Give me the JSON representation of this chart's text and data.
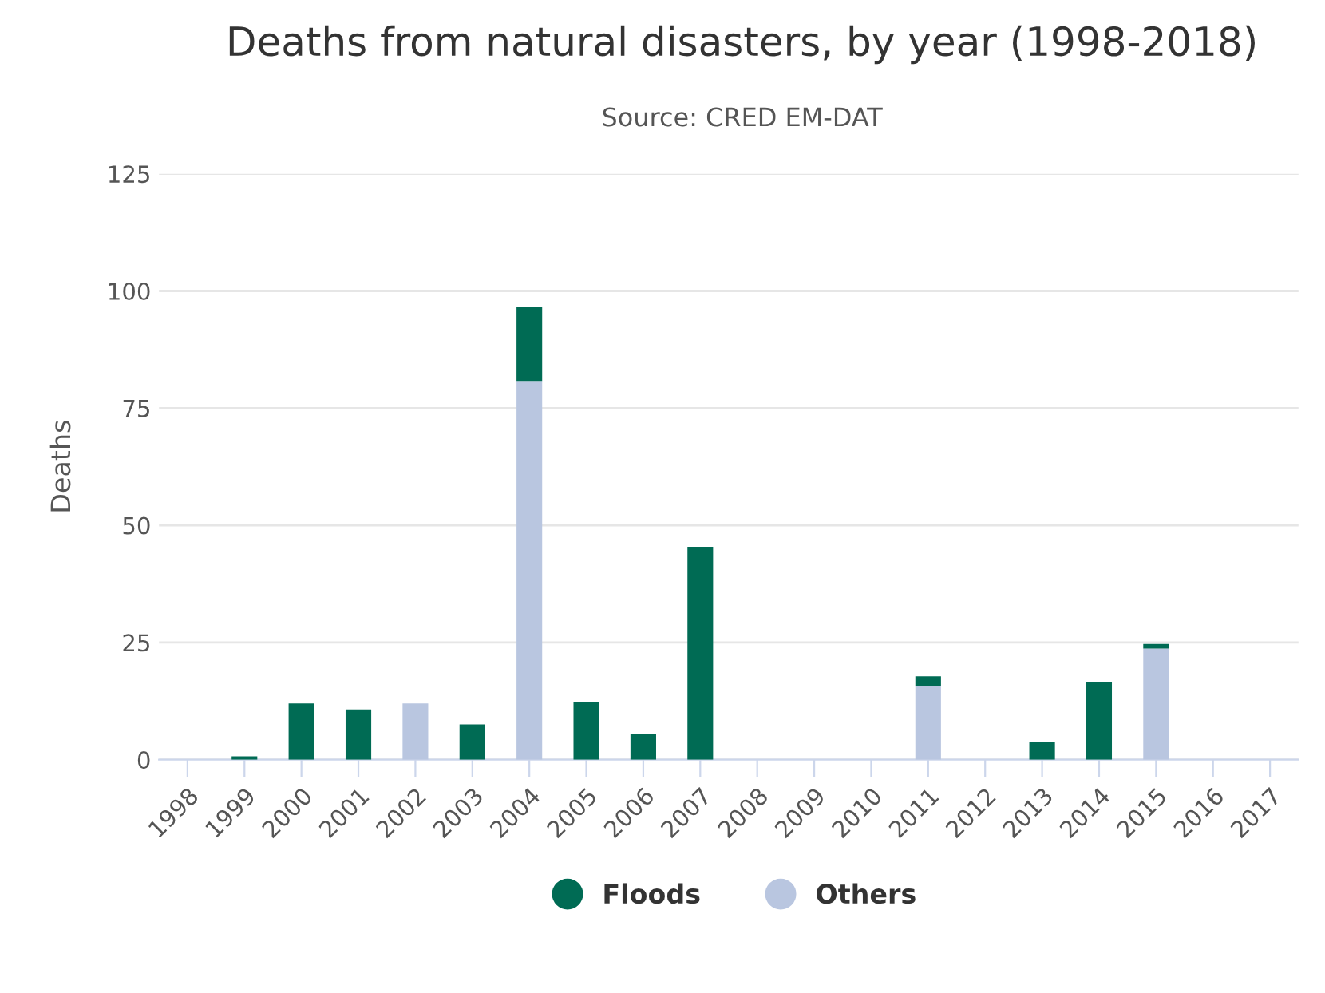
{
  "chart_data": {
    "type": "bar",
    "title": "Deaths from natural disasters, by year (1998-2018)",
    "subtitle": "Source: CRED EM-DAT",
    "ylabel": "Deaths",
    "categories": [
      "1998",
      "1999",
      "2000",
      "2001",
      "2002",
      "2003",
      "2004",
      "2005",
      "2006",
      "2007",
      "2008",
      "2009",
      "2010",
      "2011",
      "2012",
      "2013",
      "2014",
      "2015",
      "2016",
      "2017"
    ],
    "stacked": true,
    "series": [
      {
        "name": "Others",
        "color": "#b9c6e0",
        "values": [
          null,
          null,
          null,
          null,
          12,
          null,
          80.8,
          null,
          null,
          null,
          null,
          null,
          null,
          15.8,
          null,
          null,
          null,
          23.7,
          null,
          null
        ]
      },
      {
        "name": "Floods",
        "color": "#006b54",
        "values": [
          null,
          0.7,
          12,
          10.7,
          null,
          7.5,
          15.7,
          12.3,
          5.5,
          45.4,
          null,
          null,
          null,
          2,
          null,
          3.8,
          16.6,
          1,
          null,
          null
        ]
      }
    ],
    "ylim": [
      0,
      125
    ],
    "yticks": [
      0,
      25,
      50,
      75,
      100,
      125
    ],
    "grid": "y",
    "legend": "bottom"
  }
}
